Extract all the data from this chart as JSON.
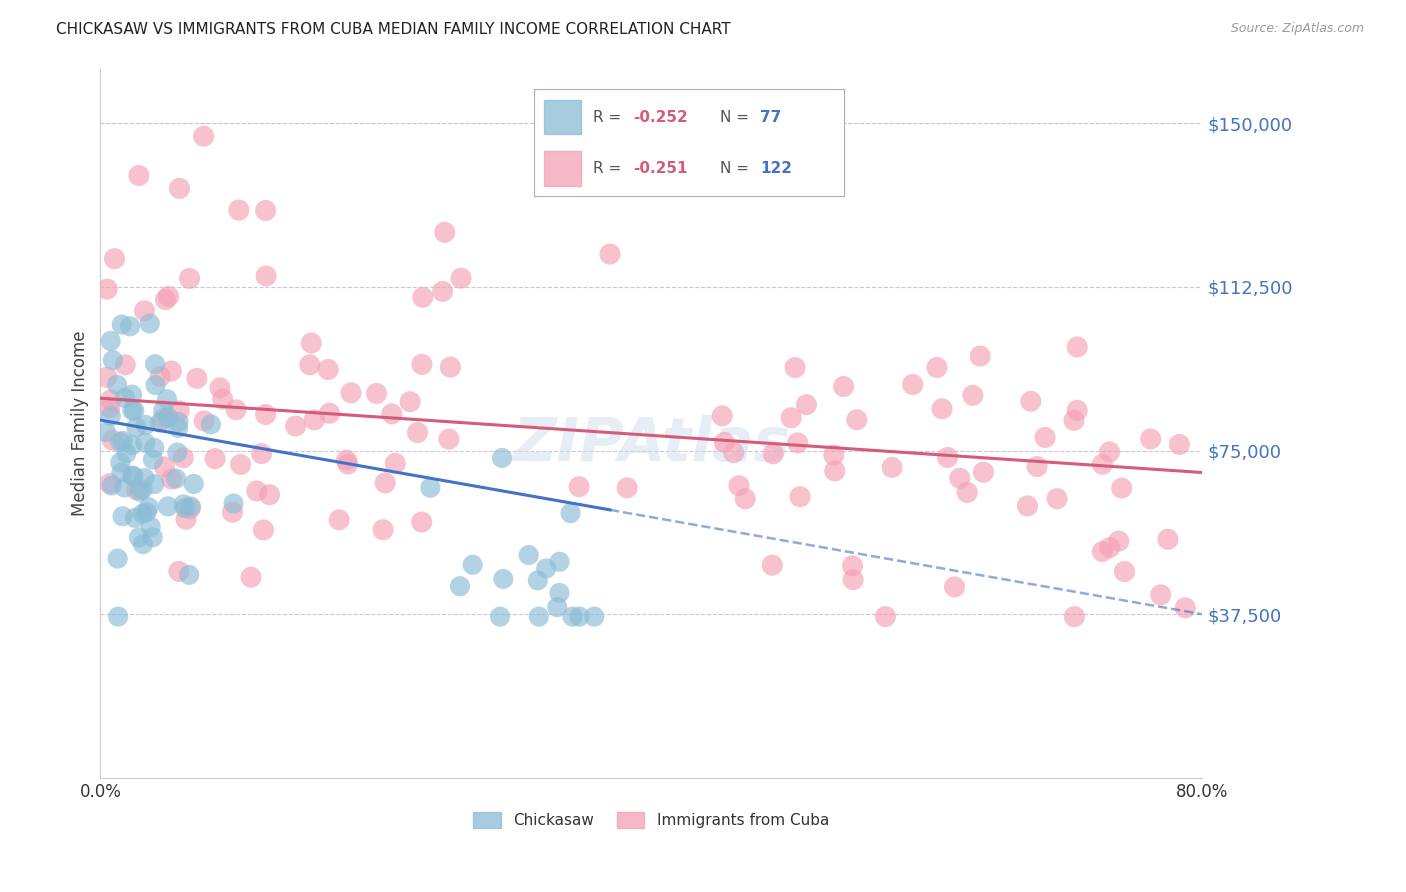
{
  "title": "CHICKASAW VS IMMIGRANTS FROM CUBA MEDIAN FAMILY INCOME CORRELATION CHART",
  "source": "Source: ZipAtlas.com",
  "ylabel": "Median Family Income",
  "y_tick_labels": [
    "$37,500",
    "$75,000",
    "$112,500",
    "$150,000"
  ],
  "y_tick_values": [
    37500,
    75000,
    112500,
    150000
  ],
  "ylim": [
    0,
    162500
  ],
  "xlim": [
    0.0,
    0.8
  ],
  "color_blue": "#8abcd6",
  "color_pink": "#f4a0b5",
  "color_blue_line": "#4472c4",
  "color_pink_line": "#d45c7a",
  "color_ytick": "#4472c4",
  "watermark": "ZIPAtlas",
  "title_fontsize": 11,
  "source_fontsize": 9,
  "legend_r1": "-0.252",
  "legend_n1": "77",
  "legend_r2": "-0.251",
  "legend_n2": "122"
}
